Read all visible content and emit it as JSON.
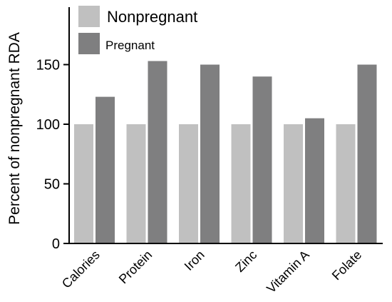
{
  "chart_data": {
    "type": "bar",
    "title": "",
    "xlabel": "",
    "ylabel": "Percent of nonpregnant RDA",
    "categories": [
      "Calories",
      "Protein",
      "Iron",
      "Zinc",
      "Vitamin A",
      "Folate"
    ],
    "series": [
      {
        "name": "Nonpregnant",
        "color": "#c0c0c0",
        "values": [
          100,
          100,
          100,
          100,
          100,
          100
        ]
      },
      {
        "name": "Pregnant",
        "color": "#7f7f80",
        "values": [
          123,
          153,
          150,
          140,
          105,
          150
        ]
      }
    ],
    "ylim": [
      0,
      200
    ],
    "yticks": [
      0,
      50,
      100,
      150
    ],
    "grid": false,
    "legend": "top-left"
  }
}
